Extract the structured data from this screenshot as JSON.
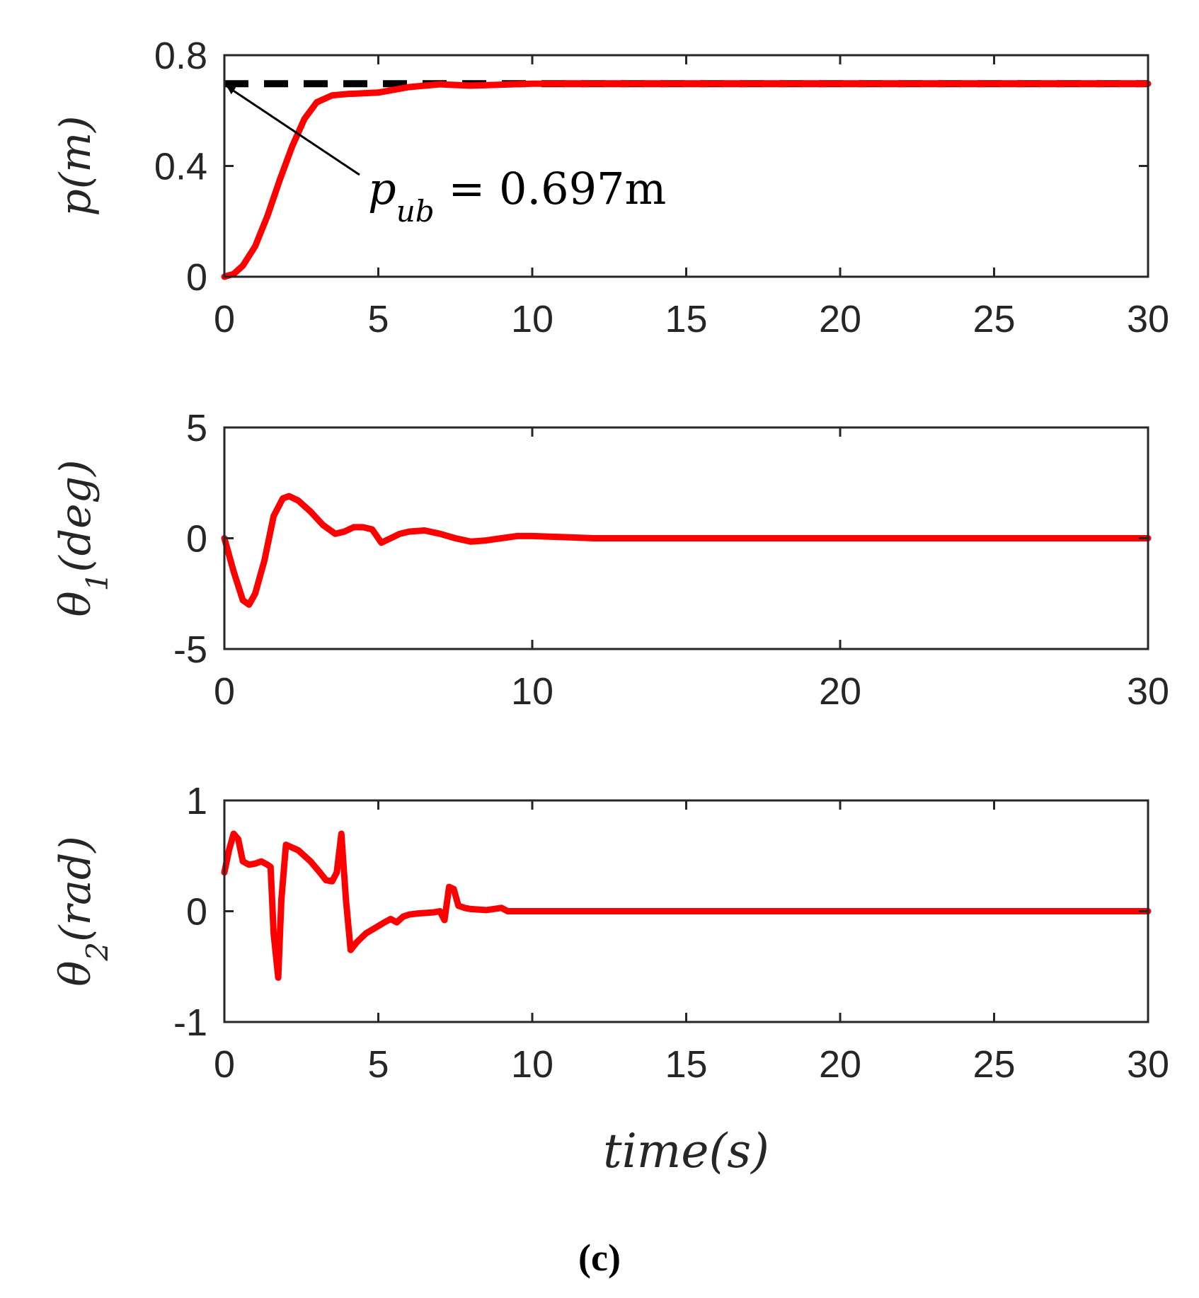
{
  "caption": "(c)",
  "colors": {
    "response": "#ff0000",
    "bound": "#000000",
    "axis": "#262626"
  },
  "chart_data": [
    {
      "id": "p",
      "type": "line",
      "ylabel": {
        "main": "p(m)"
      },
      "xlim": [
        0,
        30
      ],
      "ylim": [
        0,
        0.8
      ],
      "xticks": [
        0,
        5,
        10,
        15,
        20,
        25,
        30
      ],
      "yticks": [
        0,
        0.4,
        0.8
      ],
      "ytick_labels": [
        "0",
        "0.4",
        "0.8"
      ],
      "annotation": {
        "base": "p",
        "sub": "ub",
        "rest": " = 0.697m",
        "arrow_to": [
          0,
          0.697
        ]
      },
      "series": [
        {
          "name": "p_ub",
          "style": "dashed",
          "color": "#000000",
          "x": [
            0,
            30
          ],
          "y": [
            0.697,
            0.697
          ]
        },
        {
          "name": "p",
          "style": "solid",
          "color": "#ff0000",
          "x": [
            0,
            0.3,
            0.6,
            1.0,
            1.4,
            1.8,
            2.2,
            2.6,
            3.0,
            3.5,
            4.0,
            5.0,
            6.0,
            7.0,
            8.0,
            10.0,
            12.0,
            15.0,
            20.0,
            25.0,
            30.0
          ],
          "y": [
            0,
            0.01,
            0.04,
            0.11,
            0.22,
            0.35,
            0.47,
            0.57,
            0.63,
            0.655,
            0.66,
            0.665,
            0.685,
            0.695,
            0.69,
            0.697,
            0.697,
            0.697,
            0.697,
            0.697,
            0.697
          ]
        }
      ]
    },
    {
      "id": "theta1",
      "type": "line",
      "ylabel": {
        "main": "θ",
        "sub": "1",
        "rest": "(deg)"
      },
      "xlim": [
        0,
        30
      ],
      "ylim": [
        -5,
        5
      ],
      "xticks": [
        0,
        10,
        20,
        30
      ],
      "yticks": [
        -5,
        0,
        5
      ],
      "ytick_labels": [
        "-5",
        "0",
        "5"
      ],
      "series": [
        {
          "name": "theta1",
          "style": "solid",
          "color": "#ff0000",
          "x": [
            0,
            0.3,
            0.6,
            0.8,
            1.0,
            1.3,
            1.6,
            1.9,
            2.1,
            2.4,
            2.8,
            3.2,
            3.6,
            3.9,
            4.2,
            4.5,
            4.8,
            5.1,
            5.4,
            5.7,
            6.0,
            6.5,
            7.0,
            7.5,
            8.0,
            8.5,
            9.0,
            9.5,
            10.0,
            11.0,
            12.0,
            14.0,
            16.0,
            20.0,
            25.0,
            30.0
          ],
          "y": [
            0,
            -1.5,
            -2.8,
            -3.0,
            -2.5,
            -1.0,
            1.0,
            1.8,
            1.9,
            1.7,
            1.2,
            0.6,
            0.2,
            0.3,
            0.5,
            0.5,
            0.4,
            -0.2,
            0.0,
            0.2,
            0.3,
            0.35,
            0.2,
            0.0,
            -0.15,
            -0.1,
            0.0,
            0.1,
            0.1,
            0.05,
            0.0,
            0.0,
            0.0,
            0.0,
            0.0,
            0.0
          ]
        }
      ]
    },
    {
      "id": "theta2",
      "type": "line",
      "ylabel": {
        "main": "θ",
        "sub": "2",
        "rest": "(rad)"
      },
      "xlabel": "time(s)",
      "xlim": [
        0,
        30
      ],
      "ylim": [
        -1,
        1
      ],
      "xticks": [
        0,
        5,
        10,
        15,
        20,
        25,
        30
      ],
      "yticks": [
        -1,
        0,
        1
      ],
      "ytick_labels": [
        "-1",
        "0",
        "1"
      ],
      "series": [
        {
          "name": "theta2",
          "style": "solid",
          "color": "#ff0000",
          "x": [
            0,
            0.15,
            0.3,
            0.45,
            0.6,
            0.8,
            1.0,
            1.2,
            1.4,
            1.5,
            1.6,
            1.75,
            1.85,
            2.0,
            2.4,
            2.8,
            3.1,
            3.3,
            3.5,
            3.65,
            3.8,
            3.95,
            4.1,
            4.3,
            4.6,
            4.9,
            5.2,
            5.4,
            5.6,
            5.8,
            6.0,
            6.3,
            6.8,
            7.0,
            7.15,
            7.3,
            7.45,
            7.6,
            7.8,
            8.0,
            8.5,
            9.0,
            9.2,
            9.5,
            10.0,
            12.0,
            15.0,
            20.0,
            25.0,
            30.0
          ],
          "y": [
            0.35,
            0.55,
            0.7,
            0.65,
            0.45,
            0.42,
            0.43,
            0.45,
            0.42,
            0.4,
            -0.2,
            -0.6,
            0.1,
            0.6,
            0.55,
            0.45,
            0.35,
            0.28,
            0.27,
            0.35,
            0.7,
            0.1,
            -0.35,
            -0.28,
            -0.2,
            -0.15,
            -0.1,
            -0.07,
            -0.1,
            -0.05,
            -0.03,
            -0.02,
            -0.01,
            0.0,
            -0.08,
            0.22,
            0.2,
            0.05,
            0.03,
            0.02,
            0.01,
            0.03,
            0.0,
            0.0,
            0.0,
            0.0,
            0.0,
            0.0,
            0.0,
            0.0
          ]
        }
      ]
    }
  ]
}
